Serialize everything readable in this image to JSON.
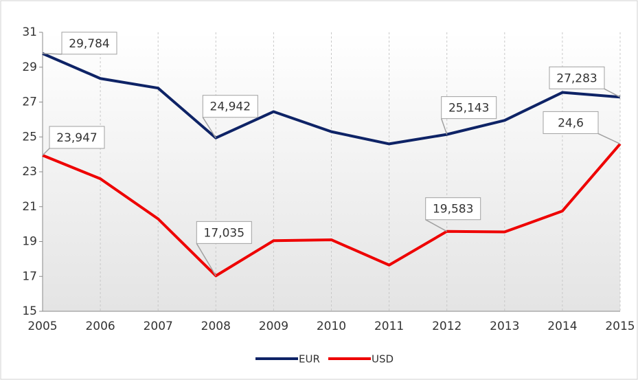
{
  "chart_data": {
    "type": "line",
    "categories": [
      "2005",
      "2006",
      "2007",
      "2008",
      "2009",
      "2010",
      "2011",
      "2012",
      "2013",
      "2014",
      "2015"
    ],
    "series": [
      {
        "name": "EUR",
        "color": "#0e2366",
        "values": [
          29.784,
          28.35,
          27.8,
          24.942,
          26.45,
          25.3,
          24.6,
          25.143,
          25.95,
          27.55,
          27.283
        ],
        "value_labels": [
          "29,784",
          null,
          null,
          "24,942",
          null,
          null,
          null,
          "25,143",
          null,
          null,
          "27,283"
        ]
      },
      {
        "name": "USD",
        "color": "#ee0000",
        "values": [
          23.947,
          22.6,
          20.3,
          17.035,
          19.05,
          19.1,
          17.65,
          19.583,
          19.55,
          20.75,
          24.6
        ],
        "value_labels": [
          "23,947",
          null,
          null,
          "17,035",
          null,
          null,
          null,
          "19,583",
          null,
          null,
          "24,6"
        ]
      }
    ],
    "ylim": [
      15,
      31
    ],
    "yticks": [
      15,
      17,
      19,
      21,
      23,
      25,
      27,
      29,
      31
    ],
    "grid": true,
    "legend": "bottom"
  }
}
